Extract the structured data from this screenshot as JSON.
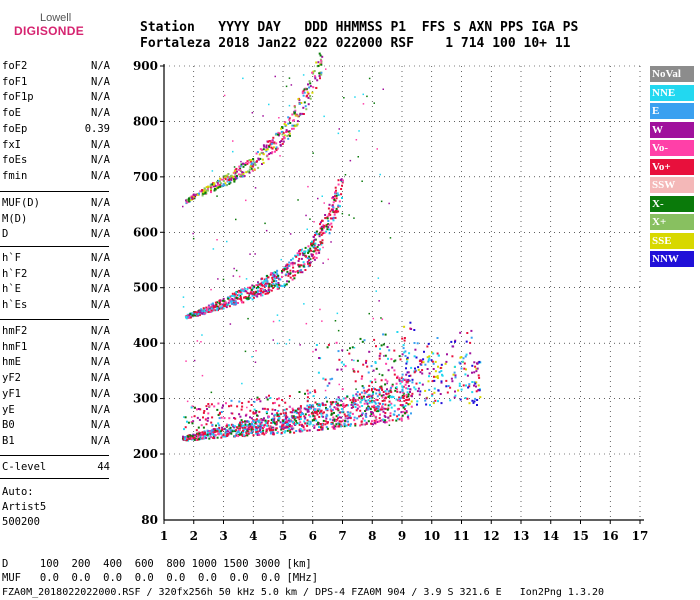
{
  "logo": {
    "top": "Lowell",
    "bottom": "DIGISONDE"
  },
  "header": {
    "line1": "Station   YYYY DAY   DDD HHMMSS P1  FFS S AXN PPS IGA PS",
    "line2": "Fortaleza 2018 Jan22 022 022000 RSF    1 714 100 10+ 11"
  },
  "params": [
    {
      "name": "foF2",
      "value": "N/A"
    },
    {
      "name": "foF1",
      "value": "N/A"
    },
    {
      "name": "foF1p",
      "value": "N/A"
    },
    {
      "name": "foE",
      "value": "N/A"
    },
    {
      "name": "foEp",
      "value": "0.39"
    },
    {
      "name": "fxI",
      "value": "N/A"
    },
    {
      "name": "foEs",
      "value": "N/A"
    },
    {
      "name": "fmin",
      "value": "N/A"
    },
    {
      "name": "MUF(D)",
      "value": "N/A"
    },
    {
      "name": "M(D)",
      "value": "N/A"
    },
    {
      "name": "D",
      "value": "N/A"
    },
    {
      "name": "h`F",
      "value": "N/A"
    },
    {
      "name": "h`F2",
      "value": "N/A"
    },
    {
      "name": "h`E",
      "value": "N/A"
    },
    {
      "name": "h`Es",
      "value": "N/A"
    },
    {
      "name": "hmF2",
      "value": "N/A"
    },
    {
      "name": "hmF1",
      "value": "N/A"
    },
    {
      "name": "hmE",
      "value": "N/A"
    },
    {
      "name": "yF2",
      "value": "N/A"
    },
    {
      "name": "yF1",
      "value": "N/A"
    },
    {
      "name": "yE",
      "value": "N/A"
    },
    {
      "name": "B0",
      "value": "N/A"
    },
    {
      "name": "B1",
      "value": "N/A"
    },
    {
      "name": "C-level",
      "value": "44"
    }
  ],
  "auto": {
    "label": "Auto:",
    "program": "Artist5",
    "version": "500200"
  },
  "legend": [
    {
      "label": "NoVal",
      "color": "#8c8c8c"
    },
    {
      "label": "NNE",
      "color": "#22d8f0"
    },
    {
      "label": "E",
      "color": "#3aa0f0"
    },
    {
      "label": "W",
      "color": "#a0109c"
    },
    {
      "label": "Vo-",
      "color": "#ff40a8"
    },
    {
      "label": "Vo+",
      "color": "#e8103c"
    },
    {
      "label": "SSW",
      "color": "#f4b8b8"
    },
    {
      "label": "X-",
      "color": "#0a7a0a"
    },
    {
      "label": "X+",
      "color": "#88c060"
    },
    {
      "label": "SSE",
      "color": "#d8d800"
    },
    {
      "label": "NNW",
      "color": "#2010d8"
    }
  ],
  "footer": {
    "line1": "D     100  200  400  600  800 1000 1500 3000 [km]",
    "line2": "MUF   0.0  0.0  0.0  0.0  0.0  0.0  0.0  0.0 [MHz]",
    "line3": "FZA0M_2018022022000.RSF / 320fx256h 50 kHz 5.0 km / DPS-4 FZA0M 904 / 3.9 S 321.6 E   Ion2Png 1.3.20"
  },
  "chart_data": {
    "type": "scatter",
    "title": "",
    "xlabel": "",
    "ylabel": "",
    "xlim": [
      1,
      17
    ],
    "ylim": [
      80,
      900
    ],
    "xticks": [
      1,
      2,
      3,
      4,
      5,
      6,
      7,
      8,
      9,
      10,
      11,
      12,
      13,
      14,
      15,
      16,
      17
    ],
    "yticks": [
      200,
      300,
      400,
      500,
      600,
      700,
      800,
      900
    ],
    "ytick_bottom_label": 80,
    "grid": "dotted",
    "description_traces": [
      {
        "name": "F trace (1st hop)",
        "x": [
          1.6,
          2,
          3,
          4,
          5,
          6,
          7,
          8,
          9,
          9.3
        ],
        "y": [
          228,
          230,
          238,
          244,
          250,
          258,
          265,
          275,
          285,
          290
        ]
      },
      {
        "name": "F trace (2nd hop)",
        "x": [
          1.7,
          2,
          3,
          4,
          5,
          6,
          6.5,
          7
        ],
        "y": [
          448,
          452,
          470,
          490,
          515,
          560,
          610,
          680
        ]
      },
      {
        "name": "F trace (3rd hop)",
        "x": [
          1.7,
          2,
          3,
          4,
          5,
          5.7,
          6.3
        ],
        "y": [
          655,
          665,
          690,
          720,
          770,
          830,
          900
        ]
      }
    ]
  }
}
